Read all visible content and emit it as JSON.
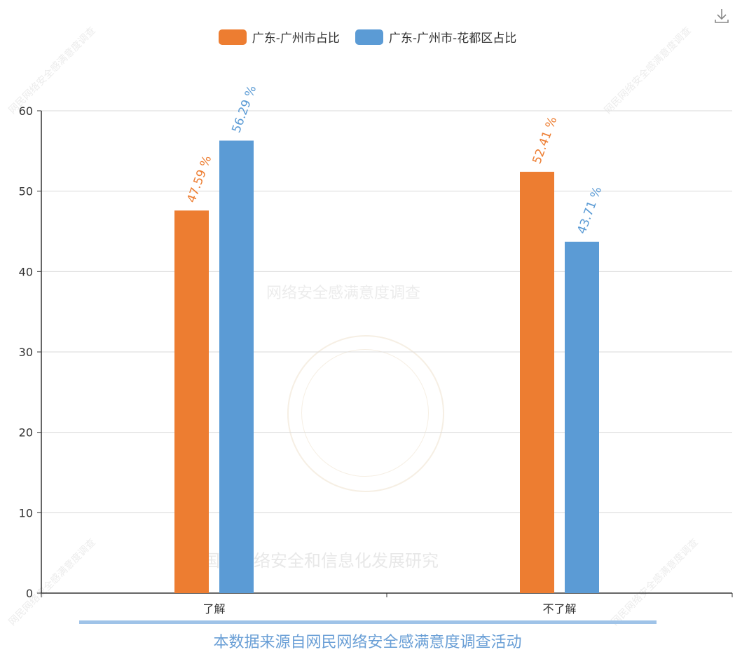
{
  "legend": {
    "items": [
      {
        "label": "广东-广州市占比",
        "color": "#ed7d31"
      },
      {
        "label": "广东-广州市-花都区占比",
        "color": "#5b9bd5"
      }
    ]
  },
  "watermarks": {
    "center": "网络安全感满意度调查",
    "bottom": "国家网络安全和信息化发展研究",
    "corner": "网民网络安全感满意度调查"
  },
  "source": {
    "text": "本数据来源自网民网络安全感满意度调查活动",
    "color": "#6a9fd6"
  },
  "chart_data": {
    "type": "bar",
    "categories": [
      "了解",
      "不了解"
    ],
    "series": [
      {
        "name": "广东-广州市占比",
        "values": [
          47.59,
          52.41
        ],
        "color": "#ed7d31"
      },
      {
        "name": "广东-广州市-花都区占比",
        "values": [
          56.29,
          43.71
        ],
        "color": "#5b9bd5"
      }
    ],
    "ylim": [
      0,
      60
    ],
    "yticks": [
      0,
      10,
      20,
      30,
      40,
      50,
      60
    ],
    "value_suffix": " %",
    "grid": true,
    "legend_position": "top-center"
  }
}
